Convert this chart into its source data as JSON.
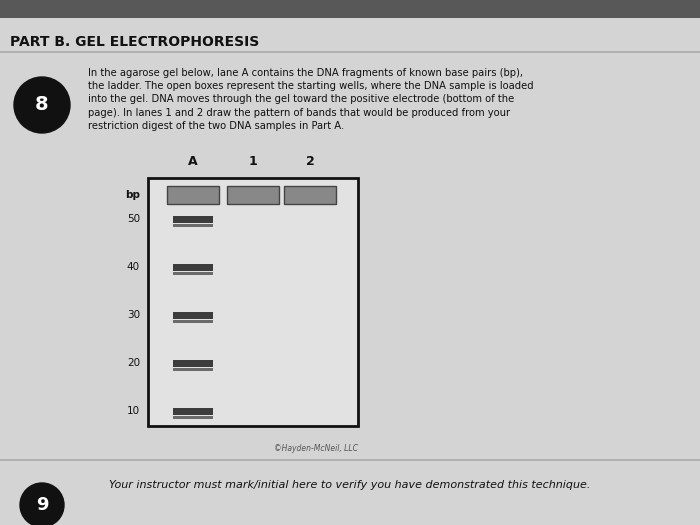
{
  "title": "PART B. GEL ELECTROPHORESIS",
  "question_number": "8",
  "question_number2": "9",
  "instruction_text": "In the agarose gel below, lane A contains the DNA fragments of known base pairs (bp),\nthe ladder. The open boxes represent the starting wells, where the DNA sample is loaded\ninto the gel. DNA moves through the gel toward the positive electrode (bottom of the\npage). In lanes 1 and 2 draw the pattern of bands that would be produced from your\nrestriction digest of the two DNA samples in Part A.",
  "footer_text": "Your instructor must mark/initial here to verify you have demonstrated this technique.",
  "copyright_text": "©Hayden-McNeil, LLC",
  "lane_labels": [
    "A",
    "1",
    "2"
  ],
  "bp_labels": [
    "bp",
    "50",
    "40",
    "30",
    "20",
    "10"
  ],
  "page_bg": "#d8d8d8",
  "top_bar_color": "#555555",
  "gel_bg": "#e0e0e0",
  "gel_border": "#222222",
  "well_fill": "#888888",
  "well_edge": "#444444",
  "band_fill": "#2a2a2a",
  "circle_color": "#111111",
  "text_color": "#111111",
  "footer_line_color": "#aaaaaa",
  "title_fontsize": 10,
  "body_fontsize": 7.2,
  "bp_fontsize": 7.5,
  "lane_label_fontsize": 9
}
